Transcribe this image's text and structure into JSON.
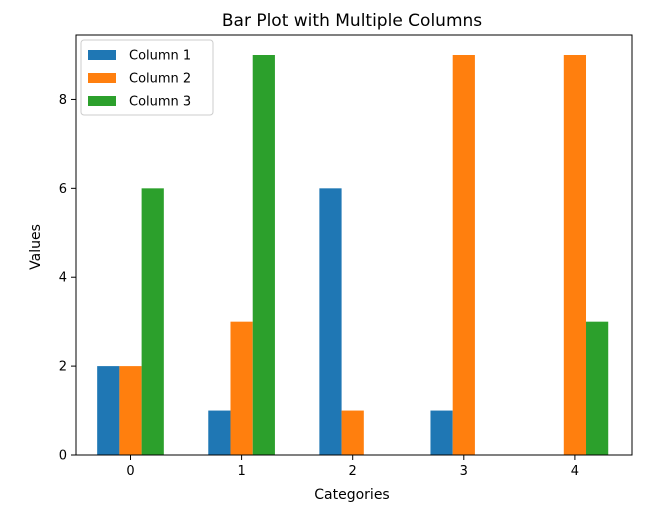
{
  "chart_data": {
    "type": "bar",
    "title": "Bar Plot with Multiple Columns",
    "xlabel": "Categories",
    "ylabel": "Values",
    "categories": [
      "0",
      "1",
      "2",
      "3",
      "4"
    ],
    "series": [
      {
        "name": "Column 1",
        "color": "#1f77b4",
        "values": [
          2,
          1,
          6,
          1,
          0
        ]
      },
      {
        "name": "Column 2",
        "color": "#ff7f0e",
        "values": [
          2,
          3,
          1,
          9,
          9
        ]
      },
      {
        "name": "Column 3",
        "color": "#2ca02c",
        "values": [
          6,
          9,
          0,
          0,
          3
        ]
      }
    ],
    "ylim": [
      0,
      9.45
    ],
    "yticks": [
      "0",
      "2",
      "4",
      "6",
      "8"
    ],
    "grid": false,
    "legend_position": "top-left"
  }
}
